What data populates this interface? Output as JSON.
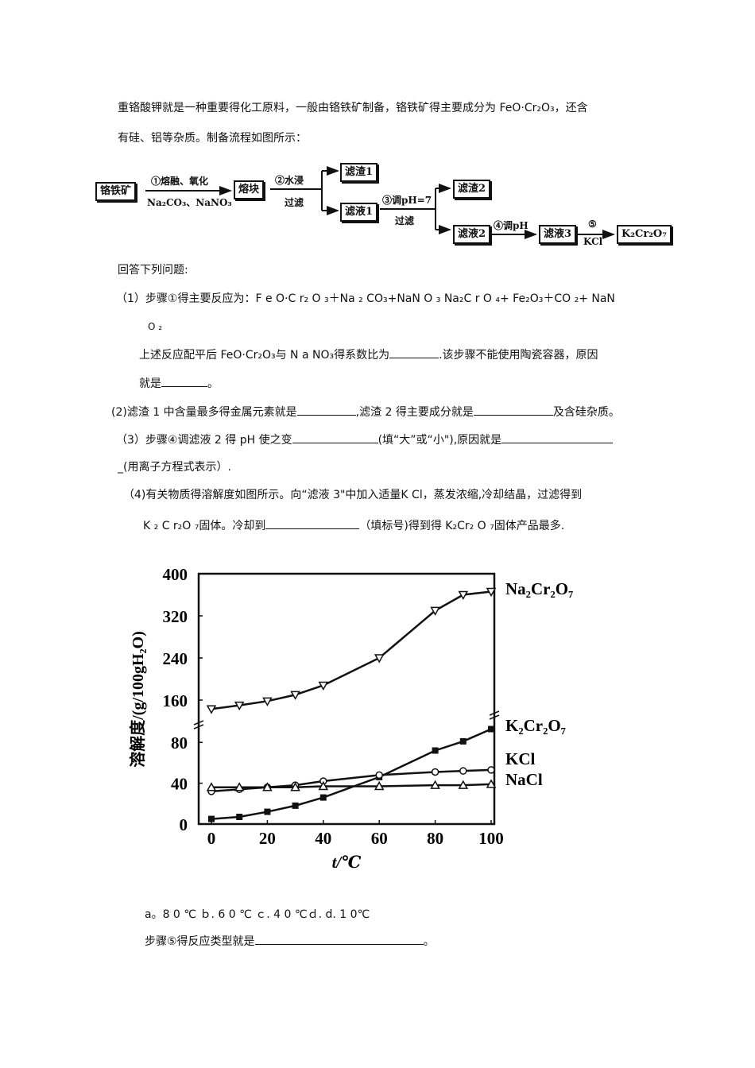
{
  "intro": {
    "line1": "重铬酸钾就是一种重要得化工原料，一般由铬铁矿制备，铬铁矿得主要成分为 FeO·Cr₂O₃，还含",
    "line2": "有硅、铝等杂质。制备流程如图所示："
  },
  "flow": {
    "boxes": {
      "ore": "铬铁矿",
      "block": "熔块",
      "residue1": "滤渣1",
      "filtrate1": "滤液1",
      "residue2": "滤渣2",
      "filtrate2": "滤液2",
      "filtrate3": "滤液3",
      "product": "K₂Cr₂O₇"
    },
    "labels": {
      "step1_top": "①熔融、氧化",
      "step1_bottom": "Na₂CO₃、NaNO₃",
      "step2_top": "②水浸",
      "step2_bottom": "过滤",
      "step3_top": "③调pH=7",
      "step3_bottom": "过滤",
      "step4_top": "④调pH",
      "step5_top": "⑤",
      "step5_bottom": "KCl"
    }
  },
  "questions": {
    "header": "回答下列问题:",
    "q1_line1": "（1）步骤①得主要反应为：F e O·C r₂ O ₃＋Na ₂ CO₃+NaN O ₃ Na₂C r O ₄+ Fe₂O₃＋CO ₂+    NaN",
    "q1_line2": "O ₂",
    "q1_line3a": "上述反应配平后 FeO·Cr₂O₃与 N a NO₃得系数比为",
    "q1_line3b": ".该步骤不能使用陶瓷容器，原因",
    "q1_line4a": "就是",
    "q1_line4b": "。",
    "q2_a": "(2)滤渣 1 中含量最多得金属元素就是",
    "q2_b": ",滤渣 2 得主要成分就是",
    "q2_c": "及含硅杂质。",
    "q3_a": "（3）步骤④调滤液 2 得 pH 使之变",
    "q3_b": "(填“大”或“小\"),原因就是",
    "q3_line2": "_(用离子方程式表示）.",
    "q4_line1": "（4)有关物质得溶解度如图所示。向“滤液 3\"中加入适量K Cl，蒸发浓缩,冷却结晶，过滤得到",
    "q4_line2a": "K ₂ C r₂O ₇固体。冷却到",
    "q4_line2b": "（填标号)得到得 K₂Cr₂ O ₇固体产品最多.",
    "options": "a。8 0 ℃      ｂ. 6 0 ℃   ｃ. 4 0 ℃ｄ. d. 1 0℃",
    "q5_a": "步骤⑤得反应类型就是",
    "q5_b": "。"
  },
  "chart_data": {
    "type": "line",
    "title": "",
    "xlabel": "t/℃",
    "ylabel": "溶解度/(g/100gH₂O)",
    "x": [
      0,
      10,
      20,
      30,
      40,
      60,
      80,
      90,
      100
    ],
    "xticks": [
      "0",
      "20",
      "40",
      "60",
      "80",
      "100"
    ],
    "yticks": [
      "0",
      "40",
      "80",
      "160",
      "240",
      "320",
      "400"
    ],
    "ylim": [
      0,
      400
    ],
    "y_axis_break": "between 80 and 160",
    "grid": false,
    "legend_position": "right, inline labels at line ends",
    "series": [
      {
        "name": "Na₂Cr₂O₇",
        "marker": "open-down-triangle",
        "values": [
          143,
          150,
          158,
          170,
          188,
          240,
          330,
          360,
          366
        ]
      },
      {
        "name": "K₂Cr₂O₇",
        "marker": "filled-square",
        "values": [
          5,
          7,
          12,
          18,
          26,
          46,
          72,
          81,
          93
        ]
      },
      {
        "name": "KCl",
        "marker": "open-circle",
        "values": [
          32,
          34,
          36,
          38,
          42,
          48,
          51,
          52,
          53
        ]
      },
      {
        "name": "NaCl",
        "marker": "open-up-triangle",
        "values": [
          36,
          36,
          36,
          36,
          37,
          37,
          38,
          38,
          39
        ]
      }
    ]
  }
}
